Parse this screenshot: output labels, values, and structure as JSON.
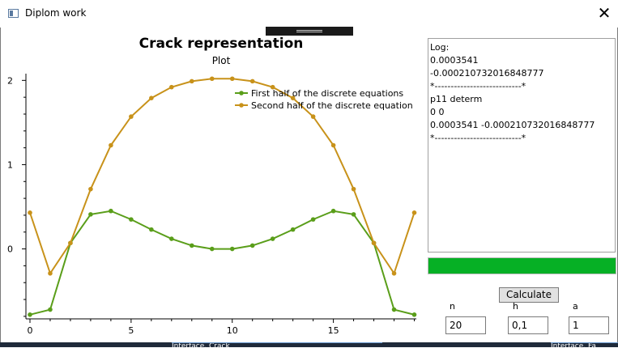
{
  "window": {
    "title": "Diplom work",
    "close_glyph": "✕"
  },
  "chart_data": {
    "type": "line",
    "title": "Crack representation",
    "subtitle": "Plot",
    "x": [
      0,
      1,
      2,
      3,
      4,
      5,
      6,
      7,
      8,
      9,
      10,
      11,
      12,
      13,
      14,
      15,
      16,
      17,
      18,
      19
    ],
    "series": [
      {
        "name": "First half of the discrete equations",
        "color": "#5a9e1a",
        "values": [
          -0.78,
          -0.72,
          0.07,
          0.41,
          0.45,
          0.35,
          0.23,
          0.12,
          0.04,
          0.0,
          0.0,
          0.04,
          0.12,
          0.23,
          0.35,
          0.45,
          0.41,
          0.07,
          -0.72,
          -0.78
        ]
      },
      {
        "name": "Second half of the discrete equation",
        "color": "#c8921a",
        "values": [
          0.43,
          -0.29,
          0.07,
          0.71,
          1.23,
          1.57,
          1.79,
          1.92,
          1.99,
          2.02,
          2.02,
          1.99,
          1.92,
          1.79,
          1.57,
          1.23,
          0.71,
          0.07,
          -0.29,
          0.43
        ]
      }
    ],
    "xlim": [
      -0.2,
      19.1
    ],
    "ylim": [
      -0.83,
      2.08
    ],
    "xticks": [
      0,
      5,
      10,
      15
    ],
    "yticks": [
      0,
      1,
      2
    ],
    "legend": "top-right",
    "grid": false
  },
  "log": {
    "lines": [
      "Log:",
      "0.0003541",
      "-0.000210732016848777",
      "*---------------------------*",
      "p11 determ",
      "0 0",
      "0.0003541 -0.000210732016848777",
      "*---------------------------*"
    ]
  },
  "progress": {
    "value": 1.0,
    "color": "#06b025"
  },
  "controls": {
    "calculate_label": "Calculate",
    "n": {
      "label": "n",
      "value": "20"
    },
    "h": {
      "label": "h",
      "value": "0,1"
    },
    "a": {
      "label": "a",
      "value": "1"
    }
  },
  "taskbar": {
    "item1": "Interface. Crack",
    "item2": "Interface. Fa"
  }
}
